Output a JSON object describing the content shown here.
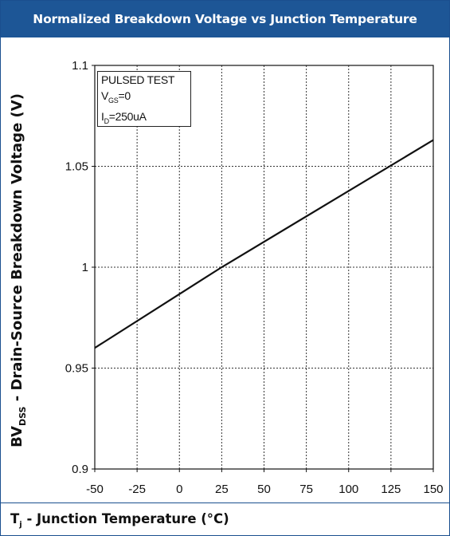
{
  "header": {
    "title": "Normalized Breakdown Voltage vs Junction Temperature"
  },
  "axis": {
    "y_label_main": "BV",
    "y_label_sub": "DSS",
    "y_label_rest": " - Drain-Source Breakdown Voltage (V)",
    "x_label_main": "T",
    "x_label_sub": "j",
    "x_label_rest": " - Junction Temperature (°C)"
  },
  "legend": {
    "line1": "PULSED TEST",
    "line2_main": "V",
    "line2_sub": "GS",
    "line2_rest": "=0",
    "line3_main": "I",
    "line3_sub": "D",
    "line3_rest": "=250uA"
  },
  "colors": {
    "header_bg": "#1d5696",
    "line": "#111111",
    "grid": "#333333"
  },
  "chart_data": {
    "type": "line",
    "title": "Normalized Breakdown Voltage vs Junction Temperature",
    "xlabel": "Tj - Junction Temperature (°C)",
    "ylabel": "BVDSS - Drain-Source Breakdown Voltage (V)",
    "xlim": [
      -50,
      150
    ],
    "ylim": [
      0.9,
      1.1
    ],
    "x_ticks": [
      -50,
      -25,
      0,
      25,
      50,
      75,
      100,
      125,
      150
    ],
    "x_tick_labels": [
      "-50",
      "-25",
      "0",
      "25",
      "50",
      "75",
      "100",
      "125",
      "150"
    ],
    "y_ticks": [
      0.9,
      0.95,
      1.0,
      1.05,
      1.1
    ],
    "y_tick_labels": [
      "0.9",
      "0.95",
      "1",
      "1.05",
      "1.1"
    ],
    "grid": true,
    "series": [
      {
        "x": [
          -50,
          25,
          150
        ],
        "y": [
          0.96,
          1.0,
          1.063
        ]
      }
    ]
  }
}
